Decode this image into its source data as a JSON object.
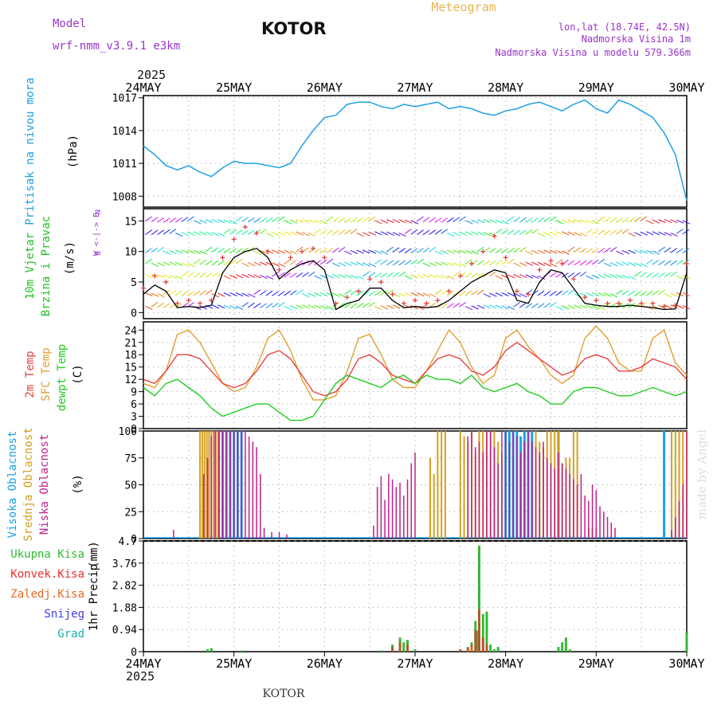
{
  "header": {
    "model_label": "Model",
    "model_name": "wrf-nmm_v3.9.1  e3km",
    "station": "KOTOR",
    "meteogram": "Meteogram",
    "lonlat": "lon,lat (18.74E, 42.5N)",
    "altitude": "Nadmorska Visina 1m",
    "model_altitude": "Nadmorska Visina u modelu 579.366m",
    "year_top": "2025",
    "year_bottom": "2025",
    "footer_station": "KOTOR",
    "credit": "made by Angel"
  },
  "colors": {
    "pressure": "#1ea0e6",
    "wind_label": "#22c022",
    "wind_speed": "#000000",
    "gust": "#e83030",
    "t2m": "#e84040",
    "sfc": "#e0a030",
    "dew": "#22cc22",
    "high_cloud": "#1ea0e6",
    "mid_cloud": "#d4a020",
    "low_cloud": "#c0208a",
    "precip_total": "#33bb33",
    "precip_conv": "#e83030",
    "precip_frz": "#e86a20",
    "snow": "#4040e0",
    "grad": "#20b0b0",
    "header_purple": "#9933cc",
    "header_orange": "#e8b450"
  },
  "chart_data": [
    {
      "type": "line",
      "panel": "pressure",
      "ylabel_main": "Pritisak na nivou mora",
      "ylabel_unit": "(hPa)",
      "ylim": [
        1007,
        1017.2
      ],
      "yticks": [
        "1017",
        "1014",
        "1011",
        "1008"
      ],
      "ytick_values": [
        1017,
        1014,
        1011,
        1008
      ],
      "x_hours": [
        0,
        3,
        6,
        9,
        12,
        15,
        18,
        21,
        24,
        27,
        30,
        33,
        36,
        39,
        42,
        45,
        48,
        51,
        54,
        57,
        60,
        63,
        66,
        69,
        72,
        75,
        78,
        81,
        84,
        87,
        90,
        93,
        96,
        99,
        102,
        105,
        108,
        111,
        114,
        117,
        120,
        123,
        126,
        129,
        132,
        135,
        138,
        141,
        144
      ],
      "series": [
        {
          "name": "MSLP",
          "values": [
            1012.6,
            1011.8,
            1010.8,
            1010.4,
            1010.8,
            1010.2,
            1009.8,
            1010.6,
            1011.2,
            1011.0,
            1011.0,
            1010.8,
            1010.6,
            1011.0,
            1012.6,
            1014.0,
            1015.2,
            1015.4,
            1016.4,
            1016.6,
            1016.6,
            1016.2,
            1016.0,
            1016.4,
            1016.2,
            1016.4,
            1016.6,
            1016.0,
            1016.2,
            1016.0,
            1015.6,
            1015.4,
            1015.8,
            1016.0,
            1016.4,
            1016.6,
            1016.2,
            1015.8,
            1016.4,
            1016.8,
            1016.0,
            1015.6,
            1016.8,
            1016.4,
            1015.8,
            1015.2,
            1013.8,
            1011.8,
            1007.6
          ]
        }
      ]
    },
    {
      "type": "line",
      "panel": "wind",
      "ylabel_main": "10m Vjetar",
      "ylabel_sub": "Brzina i Pravac",
      "ylabel_unit": "(m/s)",
      "compass_n": "N",
      "compass_line": "W  <-|->  E",
      "compass_s": "S",
      "ylim": [
        -1,
        17
      ],
      "yticks": [
        "15",
        "10",
        "5",
        "0"
      ],
      "ytick_values": [
        15,
        10,
        5,
        0
      ],
      "x_hours": [
        0,
        3,
        6,
        9,
        12,
        15,
        18,
        21,
        24,
        27,
        30,
        33,
        36,
        39,
        42,
        45,
        48,
        51,
        54,
        57,
        60,
        63,
        66,
        69,
        72,
        75,
        78,
        81,
        84,
        87,
        90,
        93,
        96,
        99,
        102,
        105,
        108,
        111,
        114,
        117,
        120,
        123,
        126,
        129,
        132,
        135,
        138,
        141,
        144
      ],
      "series": [
        {
          "name": "wind speed",
          "values": [
            3.0,
            4.5,
            3.5,
            0.8,
            1.0,
            0.8,
            1.2,
            6.5,
            9.0,
            10.0,
            10.5,
            9.0,
            5.5,
            7.0,
            8.0,
            8.5,
            7.0,
            0.5,
            1.5,
            2.0,
            4.0,
            4.0,
            2.0,
            0.8,
            1.0,
            0.8,
            1.0,
            2.0,
            3.5,
            5.0,
            6.0,
            7.0,
            6.5,
            2.0,
            1.5,
            5.0,
            7.0,
            6.5,
            4.0,
            1.5,
            1.2,
            1.0,
            1.0,
            1.2,
            1.0,
            0.8,
            0.5,
            0.6,
            6.5
          ]
        },
        {
          "name": "gust",
          "values": [
            4.0,
            6.0,
            5.0,
            1.5,
            2.0,
            1.5,
            2.0,
            9.0,
            12.0,
            14.0,
            13.0,
            10.0,
            7.0,
            9.0,
            10.0,
            10.5,
            9.0,
            1.5,
            2.5,
            3.5,
            5.5,
            5.0,
            3.0,
            1.5,
            2.0,
            1.5,
            2.0,
            3.5,
            6.0,
            8.0,
            10.0,
            12.5,
            9.0,
            3.5,
            3.0,
            7.0,
            8.5,
            8.0,
            5.5,
            2.5,
            2.0,
            1.5,
            1.5,
            2.0,
            1.5,
            1.5,
            1.0,
            1.2,
            8.0
          ]
        }
      ],
      "barb_lanes": [
        15,
        13,
        10,
        8,
        6,
        3,
        1
      ]
    },
    {
      "type": "line",
      "panel": "temperature",
      "ylabel_main": "2m Temp",
      "ylabel_sub": "SFC Temp",
      "ylabel_sub2": "dewpt Temp",
      "ylabel_unit": "(C)",
      "ylim": [
        0,
        26
      ],
      "yticks": [
        "24",
        "21",
        "18",
        "15",
        "12",
        "9",
        "6",
        "3",
        "0"
      ],
      "ytick_values": [
        24,
        21,
        18,
        15,
        12,
        9,
        6,
        3,
        0
      ],
      "x_hours": [
        0,
        3,
        6,
        9,
        12,
        15,
        18,
        21,
        24,
        27,
        30,
        33,
        36,
        39,
        42,
        45,
        48,
        51,
        54,
        57,
        60,
        63,
        66,
        69,
        72,
        75,
        78,
        81,
        84,
        87,
        90,
        93,
        96,
        99,
        102,
        105,
        108,
        111,
        114,
        117,
        120,
        123,
        126,
        129,
        132,
        135,
        138,
        141,
        144
      ],
      "series": [
        {
          "name": "2m Temp",
          "values": [
            12,
            11,
            14,
            18,
            18,
            17,
            14,
            11,
            10,
            11,
            14,
            18,
            19,
            17,
            13,
            9,
            8,
            9,
            12,
            17,
            18,
            16,
            13,
            12,
            11,
            14,
            17,
            18,
            17,
            14,
            13,
            15,
            19,
            21,
            19,
            17,
            15,
            13,
            14,
            17,
            18,
            17,
            14,
            14,
            15,
            17,
            16,
            15,
            12
          ]
        },
        {
          "name": "SFC Temp",
          "values": [
            11,
            10,
            14,
            23,
            24,
            21,
            16,
            11,
            9,
            10,
            15,
            22,
            24,
            19,
            12,
            7,
            7,
            8,
            14,
            22,
            23,
            18,
            12,
            10,
            10,
            14,
            19,
            24,
            21,
            15,
            11,
            13,
            22,
            24,
            20,
            17,
            13,
            11,
            13,
            22,
            25,
            22,
            16,
            14,
            14,
            22,
            24,
            16,
            13
          ]
        },
        {
          "name": "dewpt Temp",
          "values": [
            10,
            8,
            11,
            12,
            10,
            8,
            5,
            3,
            4,
            5,
            6,
            6,
            4,
            2,
            2,
            3,
            7,
            11,
            13,
            12,
            11,
            10,
            12,
            13,
            11,
            13,
            12,
            12,
            11,
            13,
            10,
            9,
            10,
            11,
            9,
            8,
            6,
            6,
            9,
            10,
            10,
            9,
            8,
            8,
            9,
            10,
            9,
            8,
            9
          ]
        }
      ]
    },
    {
      "type": "bar",
      "panel": "clouds",
      "ylabel_main": "Visoka Oblacnost",
      "ylabel_sub": "Srednja Oblacnost",
      "ylabel_sub2": "Niska Oblacnost",
      "ylabel_unit": "(%)",
      "ylim": [
        0,
        100
      ],
      "yticks": [
        "100",
        "75",
        "50",
        "25",
        "0"
      ],
      "ytick_values": [
        100,
        75,
        50,
        25,
        0
      ],
      "series": [
        {
          "name": "Visoka",
          "x_hours": [
            20,
            21,
            22,
            23,
            24,
            25,
            26,
            96,
            97,
            98,
            99,
            100,
            101,
            102,
            103,
            110,
            138
          ],
          "values": [
            100,
            100,
            100,
            100,
            100,
            100,
            100,
            100,
            100,
            100,
            100,
            95,
            100,
            100,
            100,
            100,
            100
          ]
        },
        {
          "name": "Srednja",
          "x_hours": [
            15,
            15.6,
            16.2,
            16.8,
            17.4,
            18,
            18.6,
            19.2,
            19.8,
            76,
            77,
            78,
            79,
            80,
            84,
            85,
            86,
            87,
            88,
            89,
            90,
            91,
            92,
            93,
            94,
            95,
            104,
            105,
            106,
            107,
            108,
            109,
            110,
            111,
            112,
            113,
            114,
            115,
            118,
            119,
            120,
            140,
            141,
            142,
            143,
            144
          ],
          "values": [
            100,
            100,
            100,
            100,
            100,
            100,
            100,
            100,
            100,
            75,
            60,
            100,
            100,
            100,
            100,
            95,
            90,
            100,
            80,
            100,
            100,
            100,
            100,
            100,
            90,
            80,
            100,
            90,
            85,
            100,
            100,
            100,
            100,
            70,
            75,
            75,
            100,
            100,
            10,
            10,
            10,
            100,
            100,
            100,
            100,
            100
          ]
        },
        {
          "name": "Niska",
          "x_hours": [
            8,
            16,
            17,
            18,
            19,
            20,
            21,
            22,
            23,
            24,
            25,
            26,
            27,
            28,
            29,
            30,
            31,
            32,
            34,
            36,
            38,
            61,
            62,
            63,
            64,
            65,
            66,
            67,
            68,
            69,
            70,
            71,
            72,
            86,
            87,
            88,
            89,
            90,
            91,
            92,
            93,
            94,
            95,
            96,
            97,
            98,
            99,
            100,
            101,
            102,
            103,
            104,
            105,
            106,
            107,
            108,
            109,
            110,
            111,
            112,
            113,
            114,
            115,
            116,
            117,
            118,
            119,
            120,
            121,
            122,
            123,
            124,
            125,
            140,
            141,
            142,
            143,
            144
          ],
          "values": [
            8,
            60,
            75,
            95,
            100,
            100,
            100,
            100,
            100,
            100,
            100,
            100,
            100,
            95,
            90,
            85,
            60,
            10,
            6,
            6,
            4,
            12,
            48,
            58,
            36,
            60,
            55,
            48,
            52,
            40,
            55,
            70,
            80,
            95,
            100,
            85,
            90,
            80,
            100,
            100,
            85,
            70,
            100,
            100,
            90,
            100,
            95,
            80,
            90,
            100,
            90,
            85,
            80,
            90,
            75,
            70,
            65,
            80,
            70,
            65,
            60,
            55,
            50,
            60,
            40,
            35,
            50,
            45,
            30,
            25,
            20,
            15,
            10,
            8,
            20,
            35,
            50,
            100
          ]
        }
      ]
    },
    {
      "type": "bar",
      "panel": "precip",
      "ylabel_main": "1hr Precip",
      "ylabel_unit": "(mm)",
      "legend": [
        "Ukupna Kisa",
        "Konvek.Kisa",
        "Zaledj.Kisa",
        "Snijeg",
        "Grad"
      ],
      "ylim": [
        0,
        4.7
      ],
      "yticks": [
        "4.7",
        "3.76",
        "2.82",
        "1.88",
        "0.94",
        "0"
      ],
      "ytick_values": [
        4.7,
        3.76,
        2.82,
        1.88,
        0.94,
        0
      ],
      "xticks": [
        "24MAY",
        "25MAY",
        "26MAY",
        "27MAY",
        "28MAY",
        "29MAY",
        "30MAY"
      ],
      "series": [
        {
          "name": "Ukupna Kisa",
          "x_hours": [
            17,
            18,
            26,
            63,
            66,
            68,
            69,
            70,
            72,
            84,
            86,
            87,
            88,
            88.5,
            89,
            90,
            91,
            92,
            93,
            94,
            110,
            111,
            112,
            113,
            144
          ],
          "values": [
            0.1,
            0.15,
            0.05,
            0.05,
            0.3,
            0.6,
            0.4,
            0.5,
            0.1,
            0.1,
            0.2,
            0.4,
            1.3,
            0.9,
            4.5,
            1.6,
            1.7,
            0.3,
            0.1,
            0.2,
            0.2,
            0.4,
            0.6,
            0.1,
            0.8
          ]
        },
        {
          "name": "Konvek.Kisa",
          "x_hours": [
            66,
            68,
            70,
            84,
            86,
            87,
            88,
            89,
            90,
            91
          ],
          "values": [
            0.2,
            0.4,
            0.3,
            0.1,
            0.15,
            0.3,
            0.9,
            1.8,
            0.6,
            0.3
          ]
        },
        {
          "name": "Zaledj.Kisa",
          "x_hours": [
            86,
            87
          ],
          "values": [
            0.1,
            0.2
          ]
        }
      ]
    }
  ]
}
